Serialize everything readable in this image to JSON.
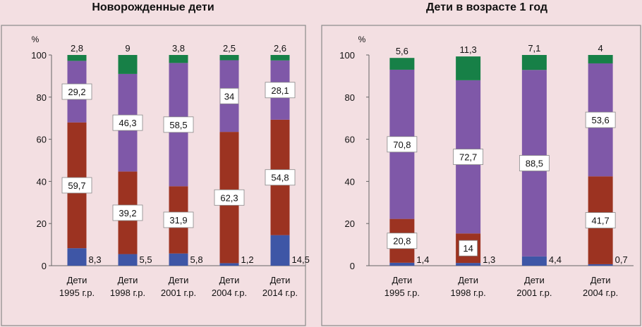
{
  "chart_data": [
    {
      "type": "bar",
      "stacked": true,
      "title": "Новорожденные дети",
      "ylabel": "%",
      "ylim": [
        0,
        100
      ],
      "yticks": [
        0,
        20,
        40,
        60,
        80,
        100
      ],
      "categories": [
        [
          "Дети",
          "1995 г.р."
        ],
        [
          "Дети",
          "1998 г.р."
        ],
        [
          "Дети",
          "2001 г.р."
        ],
        [
          "Дети",
          "2004 г.р."
        ],
        [
          "Дети",
          "2014 г.р."
        ]
      ],
      "series": [
        {
          "name": "series-1",
          "color": "#3e56a6",
          "values": [
            8.3,
            5.5,
            5.8,
            1.2,
            14.5
          ],
          "labels": [
            "8,3",
            "5,5",
            "5,8",
            "1,2",
            "14,5"
          ],
          "label_style": "side"
        },
        {
          "name": "series-2",
          "color": "#9c3321",
          "values": [
            59.7,
            39.2,
            31.9,
            62.3,
            54.8
          ],
          "labels": [
            "59,7",
            "39,2",
            "31,9",
            "62,3",
            "54,8"
          ],
          "label_style": "box"
        },
        {
          "name": "series-3",
          "color": "#7f58a8",
          "values": [
            29.2,
            46.3,
            58.5,
            34,
            28.1
          ],
          "labels": [
            "29,2",
            "46,3",
            "58,5",
            "34",
            "28,1"
          ],
          "label_style": "box"
        },
        {
          "name": "series-4",
          "color": "#178047",
          "values": [
            2.8,
            9,
            3.8,
            2.5,
            2.6
          ],
          "labels": [
            "2,8",
            "9",
            "3,8",
            "2,5",
            "2,6"
          ],
          "label_style": "top"
        }
      ]
    },
    {
      "type": "bar",
      "stacked": true,
      "title": "Дети в возрасте 1 год",
      "ylabel": "%",
      "ylim": [
        0,
        100
      ],
      "yticks": [
        0,
        20,
        40,
        60,
        80,
        100
      ],
      "categories": [
        [
          "Дети",
          "1995 г.р."
        ],
        [
          "Дети",
          "1998 г.р."
        ],
        [
          "Дети",
          "2001 г.р."
        ],
        [
          "Дети",
          "2004 г.р."
        ]
      ],
      "series": [
        {
          "name": "series-1",
          "color": "#3e56a6",
          "values": [
            1.4,
            1.3,
            4.4,
            0.7
          ],
          "labels": [
            "1,4",
            "1,3",
            "4,4",
            "0,7"
          ],
          "label_style": "side"
        },
        {
          "name": "series-2",
          "color": "#9c3321",
          "values": [
            20.8,
            14,
            0,
            41.7
          ],
          "labels": [
            "20,8",
            "14",
            null,
            "41,7"
          ],
          "label_style": "box"
        },
        {
          "name": "series-3",
          "color": "#7f58a8",
          "values": [
            70.8,
            72.7,
            88.5,
            53.6
          ],
          "labels": [
            "70,8",
            "72,7",
            "88,5",
            "53,6"
          ],
          "label_style": "box"
        },
        {
          "name": "series-4",
          "color": "#178047",
          "values": [
            5.6,
            11.3,
            7.1,
            4
          ],
          "labels": [
            "5,6",
            "11,3",
            "7,1",
            "4"
          ],
          "label_style": "top"
        }
      ]
    }
  ]
}
